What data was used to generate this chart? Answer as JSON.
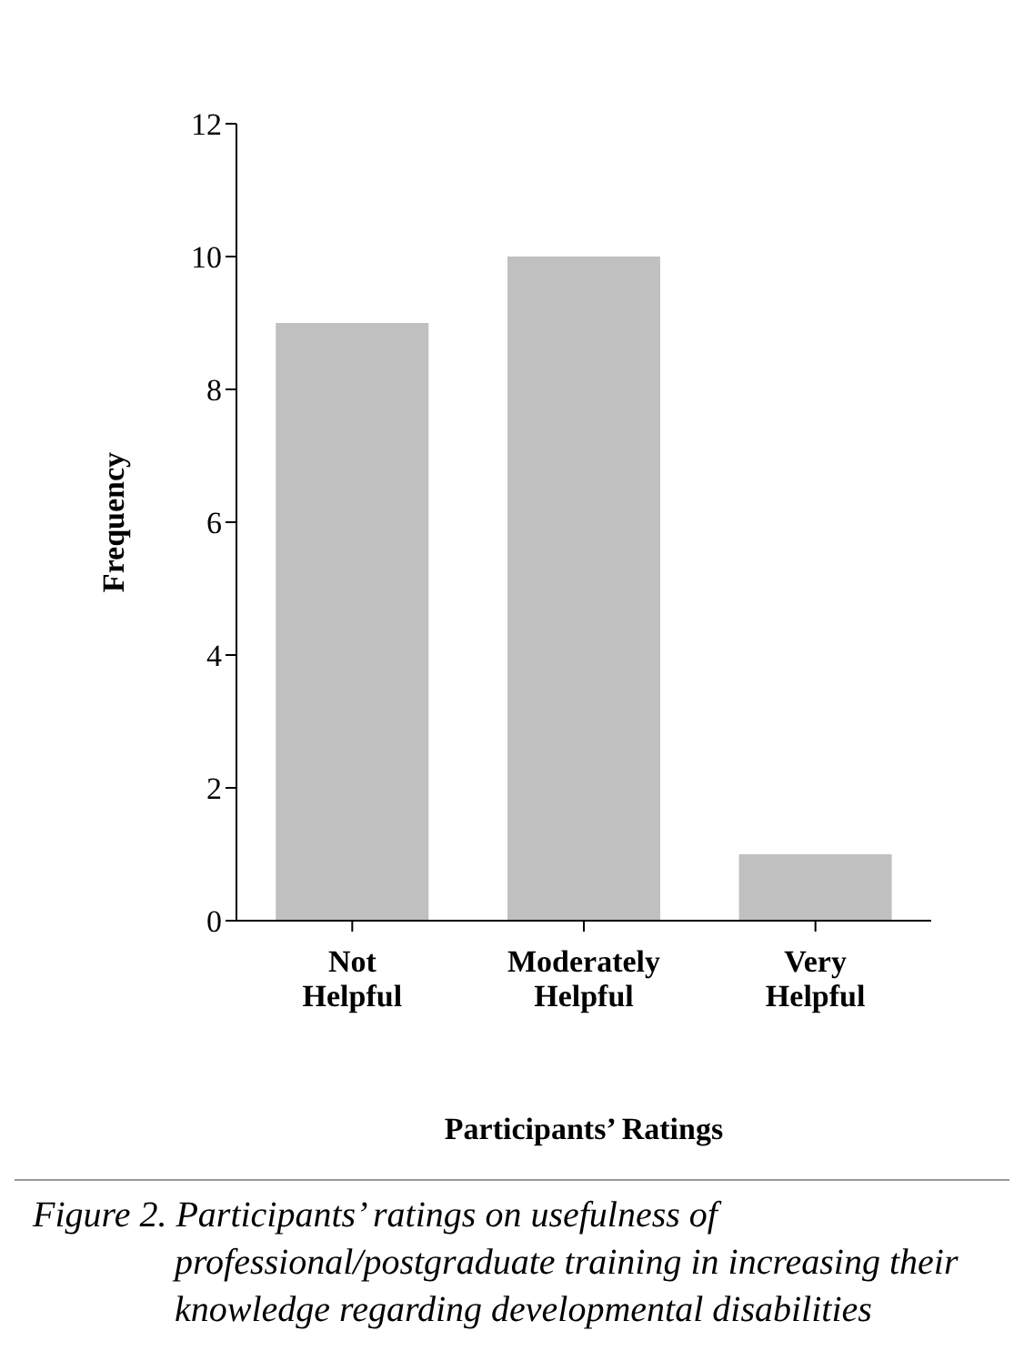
{
  "chart_data": {
    "type": "bar",
    "xlabel": "Participants’ Ratings",
    "ylabel": "Frequency",
    "categories": [
      "Not Helpful",
      "Moderately Helpful",
      "Very Helpful"
    ],
    "values": [
      9,
      10,
      1
    ],
    "color": "#c0c0c0",
    "ylim": [
      0,
      12
    ],
    "yticks": [
      0,
      2,
      4,
      6,
      8,
      10,
      12
    ],
    "grid": false,
    "legend": false,
    "annotations": [
      "Figure 2. Participants’ ratings on usefulness of professional/postgraduate training in increasing their knowledge regarding developmental disabilities"
    ]
  }
}
